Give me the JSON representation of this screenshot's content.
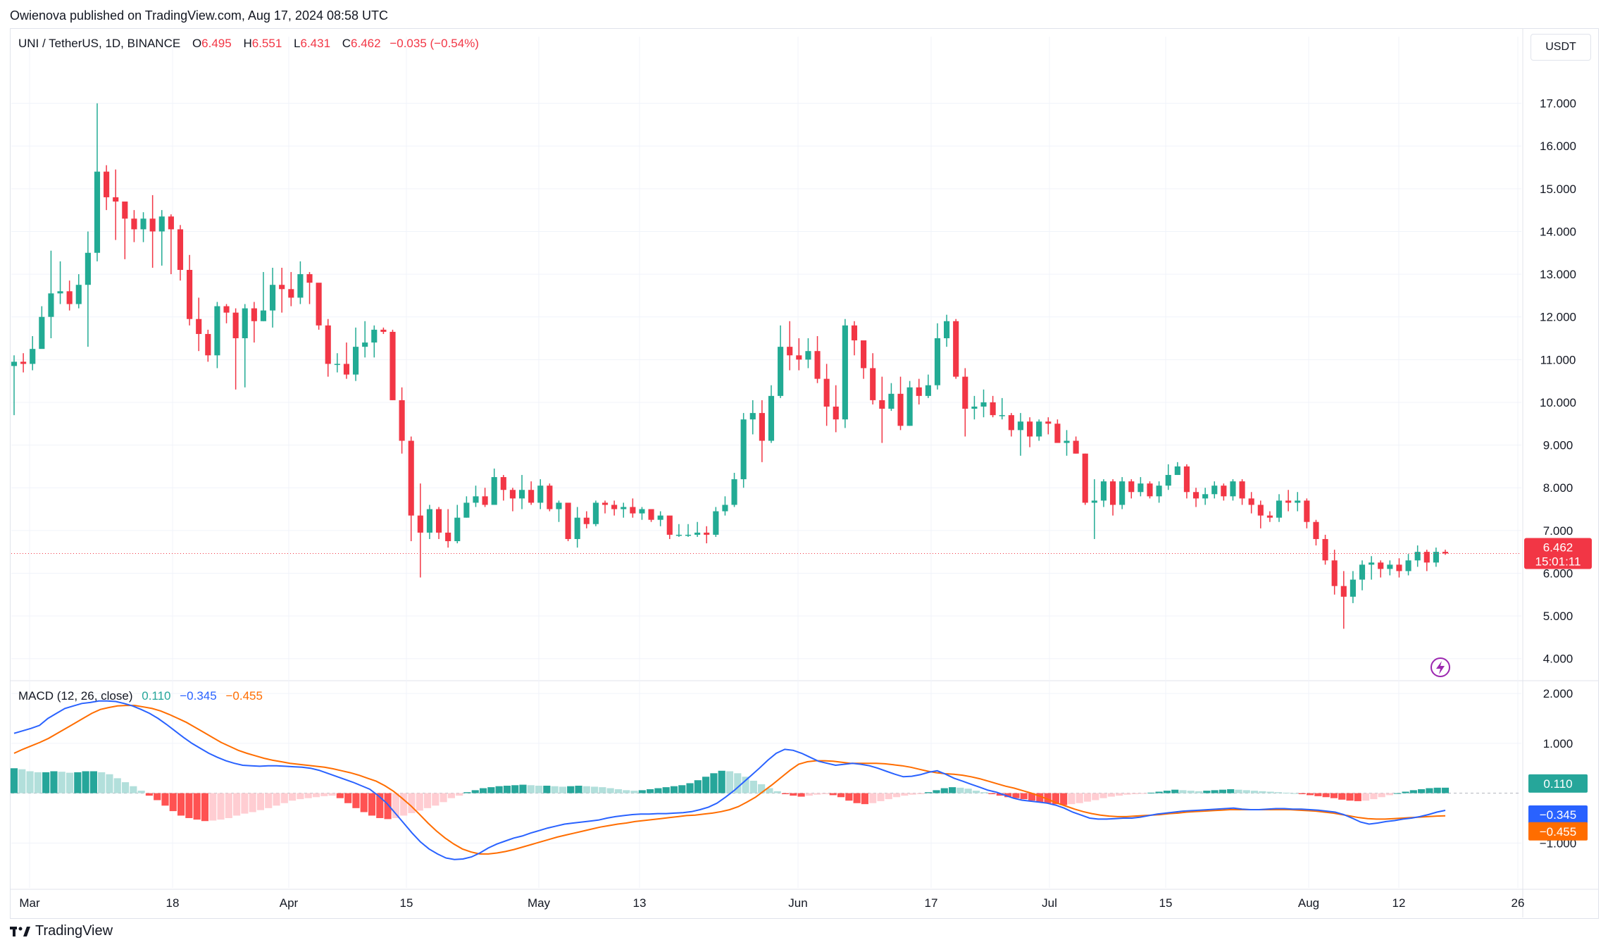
{
  "header": {
    "publisher": "Owienova published on TradingView.com, Aug 17, 2024 08:58 UTC"
  },
  "symbol": {
    "name": "UNI / TetherUS, 1D, BINANCE",
    "o_label": "O",
    "o": "6.495",
    "h_label": "H",
    "h": "6.551",
    "l_label": "L",
    "l": "6.431",
    "c_label": "C",
    "c": "6.462",
    "change": "−0.035 (−0.54%)"
  },
  "currency_button": "USDT",
  "price_badge": {
    "price": "6.462",
    "countdown": "15:01:11"
  },
  "macd": {
    "label": "MACD (12, 26, close)",
    "hist": "0.110",
    "macd": "−0.345",
    "signal": "−0.455"
  },
  "footer": {
    "brand": "TradingView",
    "logo_icon": "tradingview-logo-icon"
  },
  "flash_icon": "lightning-icon",
  "colors": {
    "up": "#22ab94",
    "down": "#f23645",
    "hist_up_strong": "#26a69a",
    "hist_up_weak": "#b2dfdb",
    "hist_down_strong": "#ff5252",
    "hist_down_weak": "#ffcdd2",
    "macd_line": "#2962ff",
    "signal_line": "#ff6d00"
  },
  "chart_data": {
    "type": "candlestick",
    "title": "",
    "x_tick_labels": [
      "Mar",
      "18",
      "Apr",
      "15",
      "May",
      "13",
      "Jun",
      "17",
      "Jul",
      "15",
      "Aug",
      "12",
      "26"
    ],
    "price_ticks": [
      "4.000",
      "5.000",
      "6.000",
      "7.000",
      "8.000",
      "9.000",
      "10.000",
      "11.000",
      "12.000",
      "13.000",
      "14.000",
      "15.000",
      "16.000",
      "17.000"
    ],
    "price_ylim": [
      3.55,
      17.9
    ],
    "macd_ticks": [
      "2.000",
      "1.000",
      "−1.000"
    ],
    "macd_ylim": [
      -1.9,
      2.2
    ],
    "last_price": 6.462,
    "close": [
      10.95,
      10.9,
      11.25,
      12.0,
      12.55,
      12.6,
      12.3,
      12.75,
      13.5,
      15.4,
      14.8,
      14.7,
      14.3,
      14.05,
      14.3,
      14.0,
      14.35,
      14.05,
      13.1,
      11.95,
      11.6,
      11.1,
      12.25,
      12.1,
      11.5,
      12.2,
      11.9,
      12.15,
      12.75,
      12.65,
      12.45,
      13.0,
      12.8,
      11.8,
      10.9,
      10.9,
      10.65,
      11.3,
      11.4,
      11.7,
      11.65,
      10.05,
      9.1,
      7.35,
      6.95,
      7.5,
      6.95,
      6.75,
      7.3,
      7.65,
      7.8,
      7.6,
      8.25,
      7.95,
      7.75,
      7.95,
      7.65,
      8.05,
      7.5,
      7.65,
      6.8,
      7.3,
      7.15,
      7.65,
      7.6,
      7.5,
      7.55,
      7.4,
      7.5,
      7.25,
      7.35,
      6.9,
      6.9,
      6.9,
      6.95,
      6.9,
      7.45,
      7.6,
      8.2,
      9.6,
      9.75,
      9.1,
      10.15,
      11.3,
      11.1,
      11.0,
      11.2,
      10.55,
      9.9,
      9.6,
      11.8,
      11.45,
      10.8,
      10.05,
      9.85,
      10.2,
      9.45,
      10.35,
      10.15,
      10.4,
      11.5,
      11.9,
      10.6,
      9.85,
      9.9,
      10.0,
      9.7,
      9.7,
      9.35,
      9.55,
      9.2,
      9.55,
      9.5,
      9.05,
      9.1,
      8.8,
      7.65,
      7.7,
      8.15,
      7.6,
      8.15,
      7.9,
      8.1,
      7.8,
      8.05,
      8.3,
      8.5,
      7.9,
      7.75,
      7.85,
      8.05,
      7.8,
      8.15,
      7.75,
      7.6,
      7.35,
      7.3,
      7.7,
      7.65,
      7.7,
      7.2,
      6.8,
      6.3,
      5.7,
      5.45,
      5.85,
      6.2,
      6.25,
      6.1,
      6.2,
      6.05,
      6.3,
      6.5,
      6.25,
      6.5,
      6.462
    ],
    "high": [
      11.1,
      11.15,
      11.55,
      12.25,
      13.55,
      13.3,
      12.85,
      13.0,
      14.0,
      17.0,
      15.55,
      15.45,
      14.7,
      14.5,
      14.45,
      14.85,
      14.5,
      14.4,
      14.15,
      13.45,
      12.45,
      11.7,
      12.35,
      12.3,
      12.2,
      12.3,
      12.35,
      13.05,
      13.15,
      13.15,
      13.05,
      13.3,
      13.05,
      12.7,
      11.95,
      11.15,
      11.4,
      11.75,
      11.9,
      11.8,
      11.75,
      11.7,
      10.35,
      9.2,
      8.1,
      7.6,
      7.55,
      7.5,
      7.6,
      7.8,
      8.05,
      8.0,
      8.45,
      8.3,
      8.0,
      8.3,
      8.15,
      8.2,
      8.1,
      7.7,
      7.55,
      7.55,
      7.45,
      7.7,
      7.7,
      7.7,
      7.65,
      7.75,
      7.55,
      7.35,
      7.45,
      7.3,
      7.15,
      7.15,
      7.2,
      7.1,
      7.55,
      7.8,
      8.35,
      9.75,
      10.05,
      10.05,
      10.4,
      11.8,
      11.9,
      11.5,
      11.5,
      11.55,
      10.9,
      10.4,
      11.95,
      11.9,
      11.4,
      11.15,
      10.6,
      10.45,
      10.6,
      10.5,
      10.55,
      10.65,
      11.85,
      12.05,
      11.95,
      10.8,
      10.15,
      10.3,
      10.15,
      10.1,
      9.75,
      9.75,
      9.65,
      9.6,
      9.65,
      9.6,
      9.35,
      9.2,
      8.8,
      8.2,
      8.2,
      8.2,
      8.25,
      8.2,
      8.25,
      8.15,
      8.15,
      8.55,
      8.6,
      8.55,
      8.0,
      8.0,
      8.15,
      8.1,
      8.2,
      8.2,
      7.9,
      7.7,
      7.45,
      7.85,
      7.95,
      7.9,
      7.75,
      7.25,
      6.9,
      6.55,
      6.05,
      6.05,
      6.3,
      6.4,
      6.3,
      6.3,
      6.35,
      6.45,
      6.65,
      6.55,
      6.6,
      6.551
    ],
    "low": [
      9.7,
      10.7,
      10.75,
      11.85,
      11.5,
      12.3,
      12.15,
      12.2,
      11.3,
      13.3,
      14.5,
      13.8,
      13.35,
      13.75,
      13.75,
      13.15,
      13.2,
      13.0,
      12.85,
      11.8,
      11.2,
      10.95,
      10.8,
      11.85,
      10.3,
      10.35,
      11.4,
      11.9,
      11.75,
      12.1,
      12.25,
      12.3,
      12.3,
      11.7,
      10.6,
      10.7,
      10.55,
      10.5,
      11.05,
      11.05,
      11.6,
      10.05,
      8.8,
      6.75,
      5.9,
      6.8,
      6.8,
      6.6,
      6.7,
      7.3,
      7.55,
      7.55,
      7.7,
      7.7,
      7.45,
      7.5,
      7.6,
      7.5,
      7.45,
      7.2,
      6.75,
      6.6,
      7.05,
      7.1,
      7.4,
      7.35,
      7.3,
      7.3,
      7.25,
      7.2,
      7.1,
      6.8,
      6.85,
      6.85,
      6.85,
      6.7,
      6.85,
      7.35,
      7.55,
      8.0,
      9.25,
      8.6,
      9.05,
      10.1,
      10.75,
      10.75,
      10.8,
      10.45,
      9.45,
      9.3,
      9.4,
      11.1,
      10.55,
      9.95,
      9.05,
      9.8,
      9.35,
      9.45,
      9.95,
      10.1,
      10.3,
      11.3,
      10.55,
      9.2,
      9.6,
      9.65,
      9.65,
      9.6,
      9.2,
      8.75,
      8.95,
      9.1,
      9.25,
      9.1,
      8.75,
      8.8,
      7.6,
      6.8,
      7.55,
      7.35,
      7.5,
      7.75,
      7.8,
      7.75,
      7.65,
      7.95,
      8.3,
      7.75,
      7.55,
      7.6,
      7.75,
      7.7,
      7.7,
      7.6,
      7.4,
      7.05,
      7.2,
      7.2,
      7.45,
      7.45,
      7.05,
      6.65,
      6.2,
      5.5,
      4.7,
      5.3,
      5.6,
      5.85,
      5.9,
      5.95,
      5.9,
      5.95,
      6.15,
      6.05,
      6.15,
      6.431
    ],
    "macd": {
      "macd_x_series_note": "",
      "hist_series": [
        0.5,
        0.48,
        0.44,
        0.42,
        0.42,
        0.44,
        0.43,
        0.41,
        0.42,
        0.44,
        0.44,
        0.42,
        0.38,
        0.3,
        0.22,
        0.14,
        0.05,
        -0.05,
        -0.14,
        -0.25,
        -0.36,
        -0.45,
        -0.5,
        -0.53,
        -0.56,
        -0.55,
        -0.53,
        -0.5,
        -0.45,
        -0.41,
        -0.38,
        -0.34,
        -0.3,
        -0.25,
        -0.2,
        -0.15,
        -0.12,
        -0.1,
        -0.08,
        -0.06,
        -0.05,
        -0.1,
        -0.2,
        -0.3,
        -0.38,
        -0.45,
        -0.5,
        -0.52,
        -0.5,
        -0.45,
        -0.4,
        -0.35,
        -0.3,
        -0.25,
        -0.18,
        -0.1,
        -0.05,
        0.02,
        0.06,
        0.1,
        0.12,
        0.14,
        0.15,
        0.16,
        0.17,
        0.16,
        0.15,
        0.15,
        0.14,
        0.13,
        0.14,
        0.15,
        0.14,
        0.13,
        0.12,
        0.1,
        0.08,
        0.06,
        0.05,
        0.06,
        0.08,
        0.1,
        0.12,
        0.14,
        0.16,
        0.2,
        0.26,
        0.33,
        0.4,
        0.45,
        0.44,
        0.4,
        0.33,
        0.25,
        0.18,
        0.1,
        0.04,
        -0.02,
        -0.05,
        -0.07,
        -0.05,
        -0.03,
        -0.02,
        -0.04,
        -0.08,
        -0.15,
        -0.2,
        -0.22,
        -0.2,
        -0.16,
        -0.12,
        -0.08,
        -0.05,
        -0.03,
        -0.02,
        0.02,
        0.06,
        0.1,
        0.12,
        0.11,
        0.09,
        0.05,
        0.02,
        -0.02,
        -0.05,
        -0.08,
        -0.1,
        -0.12,
        -0.15,
        -0.18,
        -0.2,
        -0.22,
        -0.24,
        -0.22,
        -0.2,
        -0.17,
        -0.14,
        -0.1,
        -0.07,
        -0.05,
        -0.03,
        -0.02,
        -0.01,
        0.01,
        0.03,
        0.05,
        0.07,
        0.06,
        0.05,
        0.04,
        0.05,
        0.06,
        0.07,
        0.08,
        0.07,
        0.06,
        0.05,
        0.04,
        0.03,
        0.02,
        0.01,
        0.0,
        -0.02,
        -0.04,
        -0.06,
        -0.08,
        -0.1,
        -0.13,
        -0.15,
        -0.16,
        -0.15,
        -0.12,
        -0.08,
        -0.04,
        0.0,
        0.03,
        0.06,
        0.08,
        0.1,
        0.11,
        0.11
      ],
      "macd_series": [
        1.2,
        1.25,
        1.3,
        1.36,
        1.5,
        1.6,
        1.7,
        1.75,
        1.8,
        1.82,
        1.85,
        1.85,
        1.84,
        1.8,
        1.75,
        1.68,
        1.6,
        1.5,
        1.38,
        1.25,
        1.12,
        1.0,
        0.9,
        0.8,
        0.72,
        0.65,
        0.6,
        0.56,
        0.55,
        0.54,
        0.55,
        0.55,
        0.54,
        0.53,
        0.52,
        0.5,
        0.46,
        0.4,
        0.34,
        0.28,
        0.22,
        0.15,
        0.08,
        -0.05,
        -0.2,
        -0.4,
        -0.6,
        -0.8,
        -0.98,
        -1.12,
        -1.22,
        -1.3,
        -1.33,
        -1.32,
        -1.28,
        -1.2,
        -1.1,
        -1.02,
        -0.96,
        -0.9,
        -0.86,
        -0.8,
        -0.75,
        -0.7,
        -0.66,
        -0.62,
        -0.6,
        -0.58,
        -0.56,
        -0.54,
        -0.5,
        -0.47,
        -0.45,
        -0.43,
        -0.42,
        -0.42,
        -0.41,
        -0.41,
        -0.4,
        -0.39,
        -0.37,
        -0.33,
        -0.28,
        -0.2,
        -0.08,
        0.05,
        0.2,
        0.35,
        0.5,
        0.66,
        0.8,
        0.88,
        0.86,
        0.8,
        0.72,
        0.64,
        0.6,
        0.56,
        0.58,
        0.6,
        0.58,
        0.55,
        0.5,
        0.44,
        0.38,
        0.33,
        0.34,
        0.37,
        0.42,
        0.45,
        0.38,
        0.3,
        0.24,
        0.18,
        0.12,
        0.06,
        0.02,
        -0.04,
        -0.1,
        -0.14,
        -0.16,
        -0.18,
        -0.2,
        -0.24,
        -0.3,
        -0.38,
        -0.44,
        -0.5,
        -0.52,
        -0.52,
        -0.51,
        -0.5,
        -0.5,
        -0.48,
        -0.45,
        -0.42,
        -0.4,
        -0.38,
        -0.36,
        -0.35,
        -0.34,
        -0.33,
        -0.32,
        -0.31,
        -0.3,
        -0.32,
        -0.33,
        -0.33,
        -0.32,
        -0.31,
        -0.31,
        -0.32,
        -0.32,
        -0.33,
        -0.34,
        -0.36,
        -0.38,
        -0.43,
        -0.5,
        -0.58,
        -0.62,
        -0.6,
        -0.57,
        -0.55,
        -0.52,
        -0.5,
        -0.47,
        -0.43,
        -0.38,
        -0.345
      ],
      "signal_series": [
        0.8,
        0.88,
        0.95,
        1.02,
        1.1,
        1.2,
        1.3,
        1.4,
        1.5,
        1.6,
        1.68,
        1.72,
        1.75,
        1.76,
        1.76,
        1.73,
        1.7,
        1.65,
        1.58,
        1.5,
        1.42,
        1.32,
        1.22,
        1.12,
        1.02,
        0.94,
        0.86,
        0.8,
        0.75,
        0.7,
        0.66,
        0.63,
        0.6,
        0.58,
        0.56,
        0.54,
        0.52,
        0.49,
        0.45,
        0.41,
        0.36,
        0.3,
        0.24,
        0.15,
        0.04,
        -0.1,
        -0.25,
        -0.42,
        -0.6,
        -0.76,
        -0.9,
        -1.02,
        -1.12,
        -1.18,
        -1.22,
        -1.22,
        -1.2,
        -1.17,
        -1.13,
        -1.08,
        -1.03,
        -0.98,
        -0.93,
        -0.88,
        -0.84,
        -0.8,
        -0.76,
        -0.72,
        -0.68,
        -0.65,
        -0.62,
        -0.6,
        -0.57,
        -0.55,
        -0.53,
        -0.51,
        -0.49,
        -0.47,
        -0.45,
        -0.44,
        -0.42,
        -0.4,
        -0.37,
        -0.33,
        -0.27,
        -0.18,
        -0.08,
        0.05,
        0.18,
        0.32,
        0.46,
        0.58,
        0.63,
        0.65,
        0.65,
        0.64,
        0.62,
        0.6,
        0.6,
        0.6,
        0.6,
        0.59,
        0.57,
        0.55,
        0.52,
        0.48,
        0.44,
        0.41,
        0.39,
        0.38,
        0.36,
        0.33,
        0.29,
        0.24,
        0.19,
        0.14,
        0.1,
        0.05,
        0.0,
        -0.06,
        -0.13,
        -0.2,
        -0.26,
        -0.32,
        -0.37,
        -0.41,
        -0.44,
        -0.46,
        -0.47,
        -0.47,
        -0.46,
        -0.45,
        -0.44,
        -0.43,
        -0.41,
        -0.4,
        -0.38,
        -0.37,
        -0.36,
        -0.35,
        -0.34,
        -0.33,
        -0.33,
        -0.33,
        -0.33,
        -0.33,
        -0.33,
        -0.33,
        -0.33,
        -0.34,
        -0.35,
        -0.36,
        -0.38,
        -0.4,
        -0.43,
        -0.46,
        -0.49,
        -0.51,
        -0.52,
        -0.52,
        -0.51,
        -0.5,
        -0.49,
        -0.48,
        -0.47,
        -0.46,
        -0.455
      ]
    }
  }
}
